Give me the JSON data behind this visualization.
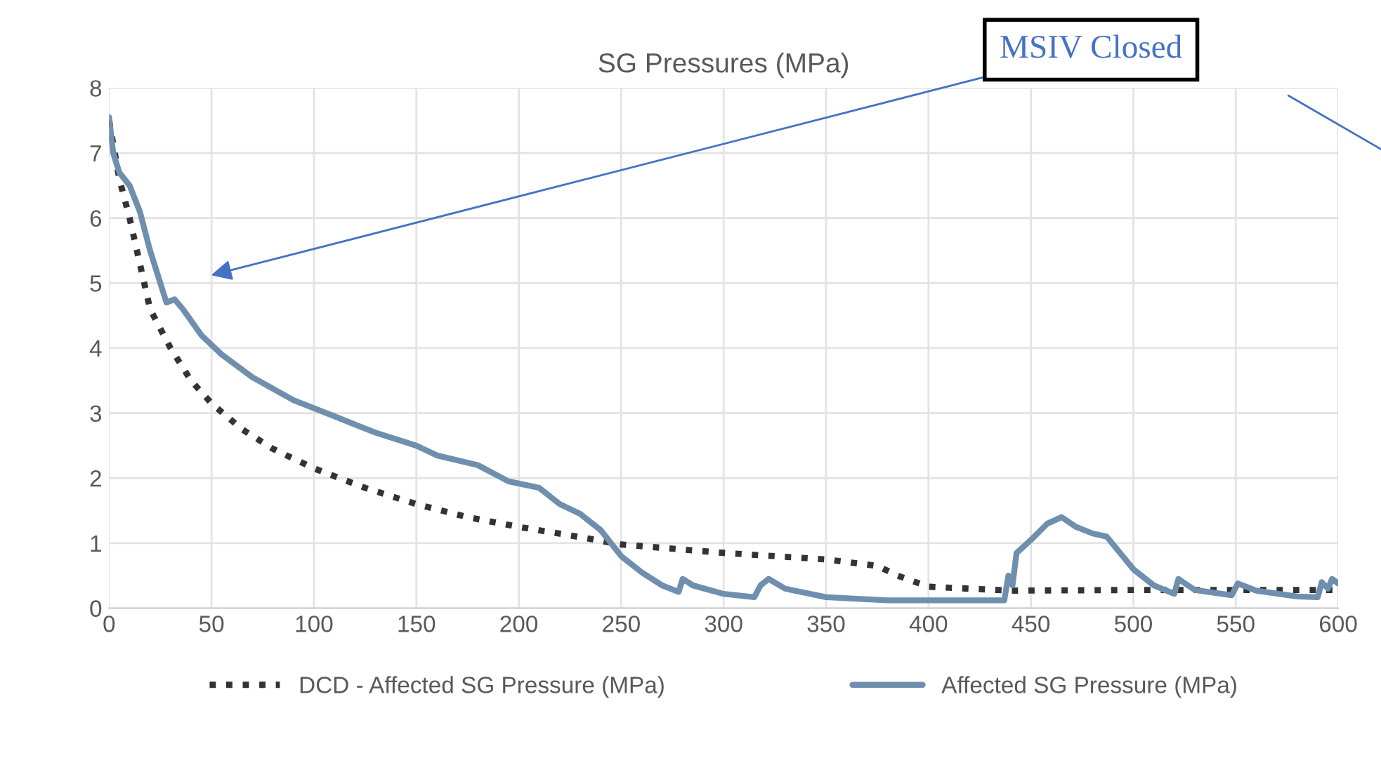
{
  "chart_data": {
    "type": "line",
    "title": "SG Pressures (MPa)",
    "xlim": [
      0,
      600
    ],
    "xticks": [
      0,
      50,
      100,
      150,
      200,
      250,
      300,
      350,
      400,
      450,
      500,
      550,
      600
    ],
    "ylim": [
      0,
      8
    ],
    "yticks": [
      0,
      1,
      2,
      3,
      4,
      5,
      6,
      7,
      8
    ],
    "grid": true,
    "legend": "bottom",
    "marker": "none",
    "annotations": [
      "MSIV Closed"
    ],
    "series": [
      {
        "name": "DCD - Affected SG Pressure (MPa)",
        "color": "#333333",
        "line_style": "dotted",
        "x": [
          0,
          5,
          10,
          15,
          20,
          30,
          40,
          50,
          65,
          80,
          100,
          125,
          150,
          175,
          200,
          225,
          250,
          300,
          350,
          375,
          385,
          400,
          440,
          500,
          550,
          600
        ],
        "values": [
          7.5,
          6.6,
          6.0,
          5.3,
          4.6,
          4.0,
          3.5,
          3.15,
          2.75,
          2.45,
          2.15,
          1.85,
          1.6,
          1.4,
          1.25,
          1.12,
          0.98,
          0.85,
          0.75,
          0.65,
          0.5,
          0.33,
          0.27,
          0.28,
          0.28,
          0.28
        ]
      },
      {
        "name": "Affected SG Pressure (MPa)",
        "color": "#6f8fae",
        "line_style": "solid",
        "x": [
          0,
          2,
          5,
          10,
          15,
          20,
          25,
          28,
          32,
          36,
          45,
          55,
          70,
          90,
          110,
          130,
          150,
          160,
          180,
          195,
          210,
          220,
          230,
          240,
          250,
          260,
          270,
          278,
          280,
          285,
          300,
          315,
          318,
          322,
          330,
          350,
          380,
          437,
          439,
          441,
          443,
          450,
          458,
          465,
          472,
          480,
          487,
          500,
          510,
          520,
          522,
          530,
          548,
          551,
          560,
          580,
          590,
          592,
          595,
          597,
          600
        ],
        "values": [
          7.55,
          7.0,
          6.7,
          6.5,
          6.1,
          5.5,
          5.0,
          4.7,
          4.75,
          4.6,
          4.2,
          3.9,
          3.55,
          3.2,
          2.95,
          2.7,
          2.5,
          2.35,
          2.2,
          1.95,
          1.85,
          1.6,
          1.45,
          1.2,
          0.8,
          0.55,
          0.35,
          0.25,
          0.45,
          0.35,
          0.22,
          0.17,
          0.35,
          0.45,
          0.3,
          0.17,
          0.12,
          0.12,
          0.5,
          0.35,
          0.85,
          1.05,
          1.3,
          1.4,
          1.25,
          1.15,
          1.1,
          0.6,
          0.35,
          0.22,
          0.45,
          0.28,
          0.2,
          0.38,
          0.27,
          0.18,
          0.17,
          0.4,
          0.3,
          0.45,
          0.38
        ]
      }
    ]
  }
}
